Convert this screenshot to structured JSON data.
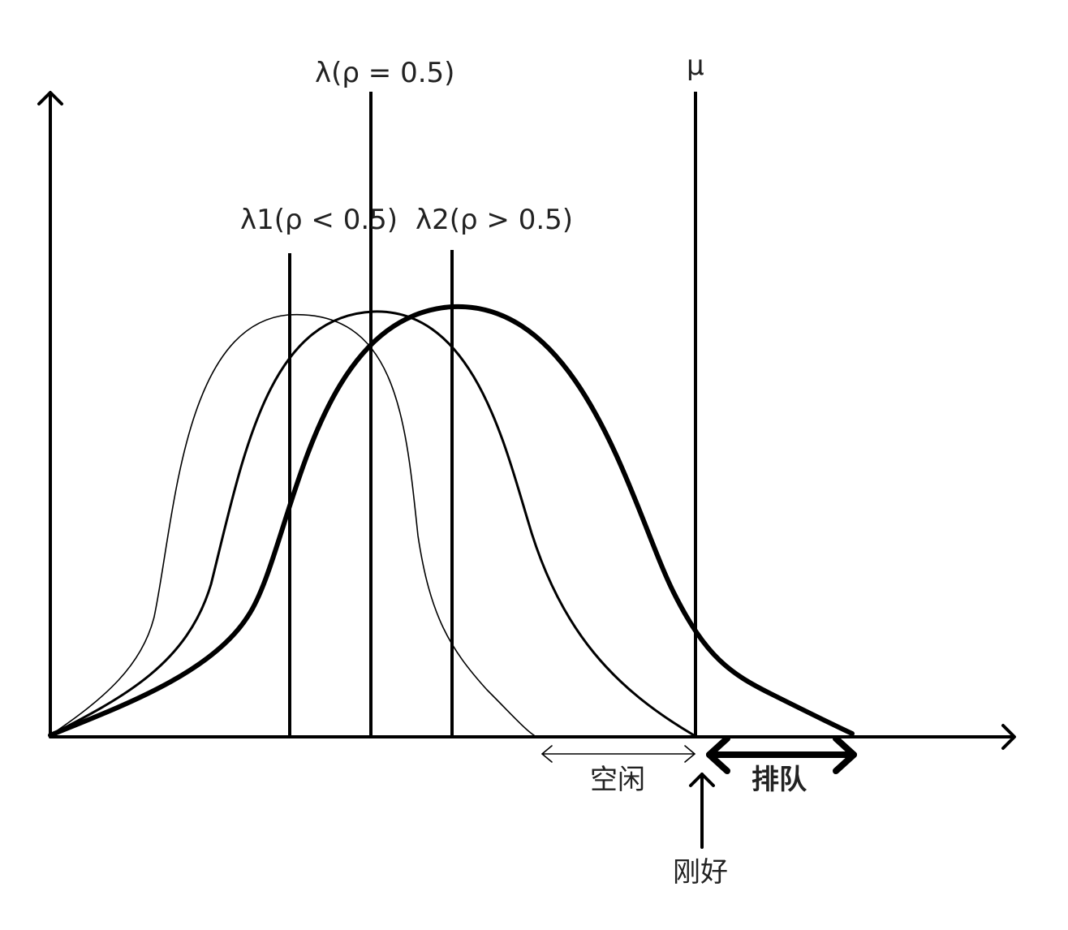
{
  "labels": {
    "lambda": "λ(ρ = 0.5)",
    "lambda1": "λ1(ρ < 0.5)",
    "lambda2": "λ2(ρ > 0.5)",
    "mu": "μ",
    "idle": "空闲",
    "queue": "排队",
    "just_right": "刚好"
  },
  "colors": {
    "ink": "#000000",
    "text": "#222222",
    "background": "#ffffff"
  }
}
